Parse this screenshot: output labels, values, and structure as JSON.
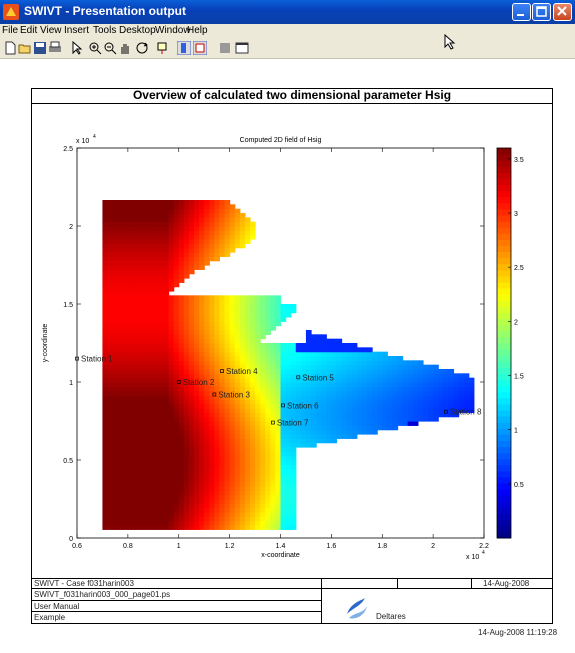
{
  "window": {
    "title": "SWIVT - Presentation output"
  },
  "menu": {
    "items": [
      "File",
      "Edit",
      "View",
      "Insert",
      "Tools",
      "Desktop",
      "Window",
      "Help"
    ]
  },
  "toolbar": {
    "icons": [
      "new-file-icon",
      "open-folder-icon",
      "save-icon",
      "print-icon",
      "pointer-icon",
      "zoom-in-icon",
      "zoom-out-icon",
      "pan-icon",
      "rotate-icon",
      "data-cursor-icon",
      "colorbar-icon",
      "legend-icon",
      "hide-plot-tools-icon",
      "show-plot-tools-icon"
    ]
  },
  "page": {
    "title": "Overview of calculated two dimensional parameter Hsig"
  },
  "chart_data": {
    "type": "heatmap",
    "title": "Computed 2D field of Hsig",
    "xlabel": "x-coordinate",
    "ylabel": "y-coordinate",
    "xlim": [
      0.6,
      2.2
    ],
    "ylim": [
      0,
      2.5
    ],
    "x_exponent": "x 10",
    "x_exponent_power": "4",
    "y_exponent": "x 10",
    "y_exponent_power": "4",
    "xticks": [
      0.6,
      0.8,
      1,
      1.2,
      1.4,
      1.6,
      1.8,
      2,
      2.2
    ],
    "xticklabels": [
      "0.6",
      "0.8",
      "1",
      "1.2",
      "1.4",
      "1.6",
      "1.8",
      "2",
      "2.2"
    ],
    "yticks": [
      0,
      0.5,
      1,
      1.5,
      2,
      2.5
    ],
    "yticklabels": [
      "0",
      "0.5",
      "1",
      "1.5",
      "2",
      "2.5"
    ],
    "colorbar": {
      "min": 0,
      "max": 3.6,
      "ticks": [
        0.5,
        1,
        1.5,
        2,
        2.5,
        3,
        3.5
      ],
      "ticklabels": [
        "0.5",
        "1",
        "1.5",
        "2",
        "2.5",
        "3",
        "3.5"
      ],
      "colormap": "jet"
    },
    "stations": [
      {
        "name": "Station 1",
        "x": 0.6,
        "y": 1.15
      },
      {
        "name": "Station 2",
        "x": 1.0,
        "y": 1.0
      },
      {
        "name": "Station 3",
        "x": 1.14,
        "y": 0.92
      },
      {
        "name": "Station 4",
        "x": 1.17,
        "y": 1.07
      },
      {
        "name": "Station 5",
        "x": 1.47,
        "y": 1.03
      },
      {
        "name": "Station 6",
        "x": 1.41,
        "y": 0.85
      },
      {
        "name": "Station 7",
        "x": 1.37,
        "y": 0.74
      },
      {
        "name": "Station 8",
        "x": 2.05,
        "y": 0.81
      }
    ]
  },
  "footer": {
    "case": "SWIVT - Case f031harin003",
    "date": "14-Aug-2008",
    "file": "SWIVT_f031harin003_000_page01.ps",
    "manual": "User Manual",
    "example": "Example",
    "logo": "Deltares",
    "timestamp": "14-Aug-2008 11:19:28"
  }
}
